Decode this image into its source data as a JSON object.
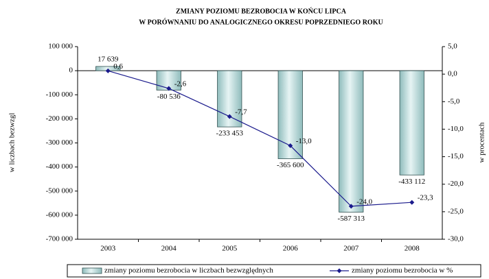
{
  "chart_data": {
    "type": "bar_line",
    "title": [
      "ZMIANY POZIOMU BEZROBOCIA W  KOŃCU LIPCA",
      "W  PORÓWNANIU DO ANALOGICZNEGO OKRESU POPRZEDNIEGO  ROKU"
    ],
    "y_label": "w liczbach bezwzgl",
    "y2_label": "w procentach",
    "categories": [
      "2003",
      "2004",
      "2005",
      "2006",
      "2007",
      "2008"
    ],
    "series": [
      {
        "name": "zmiany poziomu bezrobocia w liczbach bezwzględnych",
        "type": "bar",
        "color": "#8fbcbc",
        "axis": "y",
        "values": [
          17639,
          -80536,
          -233453,
          -365600,
          -587313,
          -433112
        ],
        "value_labels": [
          "17 639",
          "-80 536",
          "-233 453",
          "-365 600",
          "-587 313",
          "-433 112"
        ]
      },
      {
        "name": "zmiany poziomu bezrobocia w %",
        "type": "line",
        "color": "#1a1a8c",
        "axis": "y2",
        "values": [
          0.6,
          -2.6,
          -7.7,
          -13.0,
          -24.0,
          -23.3
        ],
        "value_labels": [
          "0,6",
          "-2,6",
          "-7,7",
          "-13,0",
          "-24,0",
          "-23,3"
        ]
      }
    ],
    "ylim": [
      -700000,
      100000
    ],
    "yticks": [
      {
        "value": 100000,
        "label": "100 000"
      },
      0,
      {
        "value": -100000,
        "label": "-100 000"
      },
      {
        "value": -200000,
        "label": "-200 000"
      },
      {
        "value": -300000,
        "label": "-300 000"
      },
      {
        "value": -400000,
        "label": "-400 000"
      },
      {
        "value": -500000,
        "label": "-500 000"
      },
      {
        "value": -600000,
        "label": "-600 000"
      },
      {
        "value": -700000,
        "label": "-700 000"
      }
    ],
    "y2lim": [
      -30,
      5
    ],
    "y2ticks": [
      {
        "value": 5,
        "label": "5,0"
      },
      {
        "value": 0,
        "label": "0,0"
      },
      {
        "value": -5,
        "label": "-5,0"
      },
      {
        "value": -10,
        "label": "-10,0"
      },
      {
        "value": -15,
        "label": "-15,0"
      },
      {
        "value": -20,
        "label": "-20,0"
      },
      {
        "value": -25,
        "label": "-25,0"
      },
      {
        "value": -30,
        "label": "-30,0"
      }
    ],
    "legend": "bottom"
  }
}
